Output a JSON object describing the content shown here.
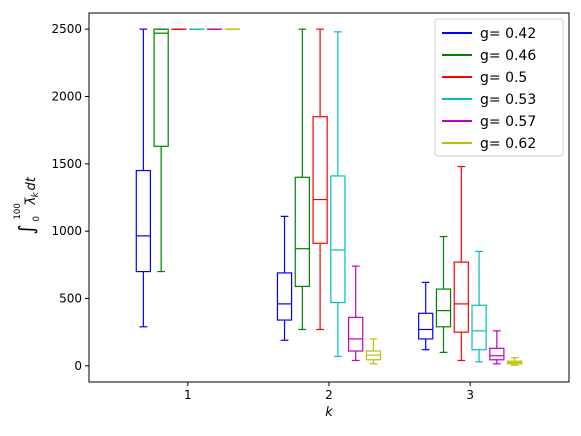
{
  "chart_data": {
    "type": "box",
    "title": "",
    "xlabel": "k",
    "ylabel": {
      "integral_lower": "0",
      "integral_upper": "100",
      "integrand": "λ",
      "subscript": "k",
      "differential": "dt"
    },
    "categories": [
      1,
      2,
      3
    ],
    "xlim": [
      0.3,
      3.7
    ],
    "ylim": [
      -120,
      2620
    ],
    "yticks": [
      0,
      500,
      1000,
      1500,
      2000,
      2500
    ],
    "legend_position": "top-right",
    "grid": false,
    "series": [
      {
        "name": "g= 0.42",
        "color": "#0000ff",
        "boxes": [
          {
            "k": 1,
            "whislo": 290,
            "q1": 700,
            "med": 965,
            "q3": 1450,
            "whishi": 2500
          },
          {
            "k": 2,
            "whislo": 190,
            "q1": 340,
            "med": 460,
            "q3": 690,
            "whishi": 1110
          },
          {
            "k": 3,
            "whislo": 120,
            "q1": 200,
            "med": 270,
            "q3": 390,
            "whishi": 620
          }
        ]
      },
      {
        "name": "g= 0.46",
        "color": "#008000",
        "boxes": [
          {
            "k": 1,
            "whislo": 700,
            "q1": 1630,
            "med": 2470,
            "q3": 2500,
            "whishi": 2500
          },
          {
            "k": 2,
            "whislo": 270,
            "q1": 590,
            "med": 870,
            "q3": 1400,
            "whishi": 2500
          },
          {
            "k": 3,
            "whislo": 100,
            "q1": 290,
            "med": 410,
            "q3": 570,
            "whishi": 960
          }
        ]
      },
      {
        "name": "g= 0.5",
        "color": "#ff0000",
        "boxes": [
          {
            "k": 1,
            "whislo": 2500,
            "q1": 2500,
            "med": 2500,
            "q3": 2500,
            "whishi": 2500
          },
          {
            "k": 2,
            "whislo": 270,
            "q1": 910,
            "med": 1235,
            "q3": 1850,
            "whishi": 2500
          },
          {
            "k": 3,
            "whislo": 40,
            "q1": 250,
            "med": 460,
            "q3": 770,
            "whishi": 1480
          }
        ]
      },
      {
        "name": "g= 0.53",
        "color": "#00bfbf",
        "boxes": [
          {
            "k": 1,
            "whislo": 2500,
            "q1": 2500,
            "med": 2500,
            "q3": 2500,
            "whishi": 2500
          },
          {
            "k": 2,
            "whislo": 70,
            "q1": 470,
            "med": 860,
            "q3": 1410,
            "whishi": 2480
          },
          {
            "k": 3,
            "whislo": 30,
            "q1": 120,
            "med": 260,
            "q3": 450,
            "whishi": 850
          }
        ]
      },
      {
        "name": "g= 0.57",
        "color": "#bf00bf",
        "boxes": [
          {
            "k": 1,
            "whislo": 2500,
            "q1": 2500,
            "med": 2500,
            "q3": 2500,
            "whishi": 2500
          },
          {
            "k": 2,
            "whislo": 40,
            "q1": 110,
            "med": 200,
            "q3": 360,
            "whishi": 740
          },
          {
            "k": 3,
            "whislo": 15,
            "q1": 45,
            "med": 75,
            "q3": 130,
            "whishi": 260
          }
        ]
      },
      {
        "name": "g= 0.62",
        "color": "#bfbf00",
        "boxes": [
          {
            "k": 1,
            "whislo": 2500,
            "q1": 2500,
            "med": 2500,
            "q3": 2500,
            "whishi": 2500
          },
          {
            "k": 2,
            "whislo": 15,
            "q1": 45,
            "med": 80,
            "q3": 110,
            "whishi": 200
          },
          {
            "k": 3,
            "whislo": 5,
            "q1": 15,
            "med": 25,
            "q3": 35,
            "whishi": 60
          }
        ]
      }
    ]
  }
}
